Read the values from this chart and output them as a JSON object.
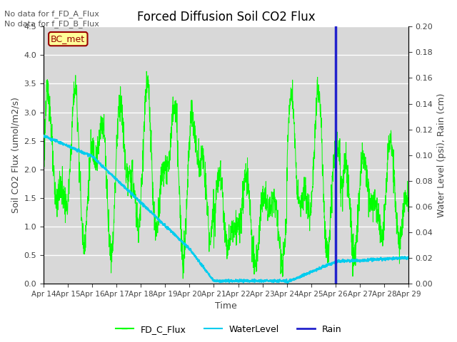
{
  "title": "Forced Diffusion Soil CO2 Flux",
  "xlabel": "Time",
  "ylabel_left": "Soil CO2 Flux (umol/m2/s)",
  "ylabel_right": "Water Level (psi), Rain (cm)",
  "annotation_text": "No data for f_FD_A_Flux\nNo data for f_FD_B_Flux",
  "bc_met_label": "BC_met",
  "ylim_left": [
    0.0,
    4.5
  ],
  "ylim_right": [
    0.0,
    0.2
  ],
  "legend_labels": [
    "FD_C_Flux",
    "WaterLevel",
    "Rain"
  ],
  "flux_color": "#00ff00",
  "water_color": "#00ccee",
  "rain_color": "#2222cc",
  "bg_color": "#d8d8d8",
  "grid_color": "#ffffff",
  "bc_met_bg": "#ffff99",
  "bc_met_border": "#990000",
  "rain_day": 12.0,
  "n_points": 2000,
  "figsize": [
    6.4,
    4.8
  ],
  "dpi": 100
}
